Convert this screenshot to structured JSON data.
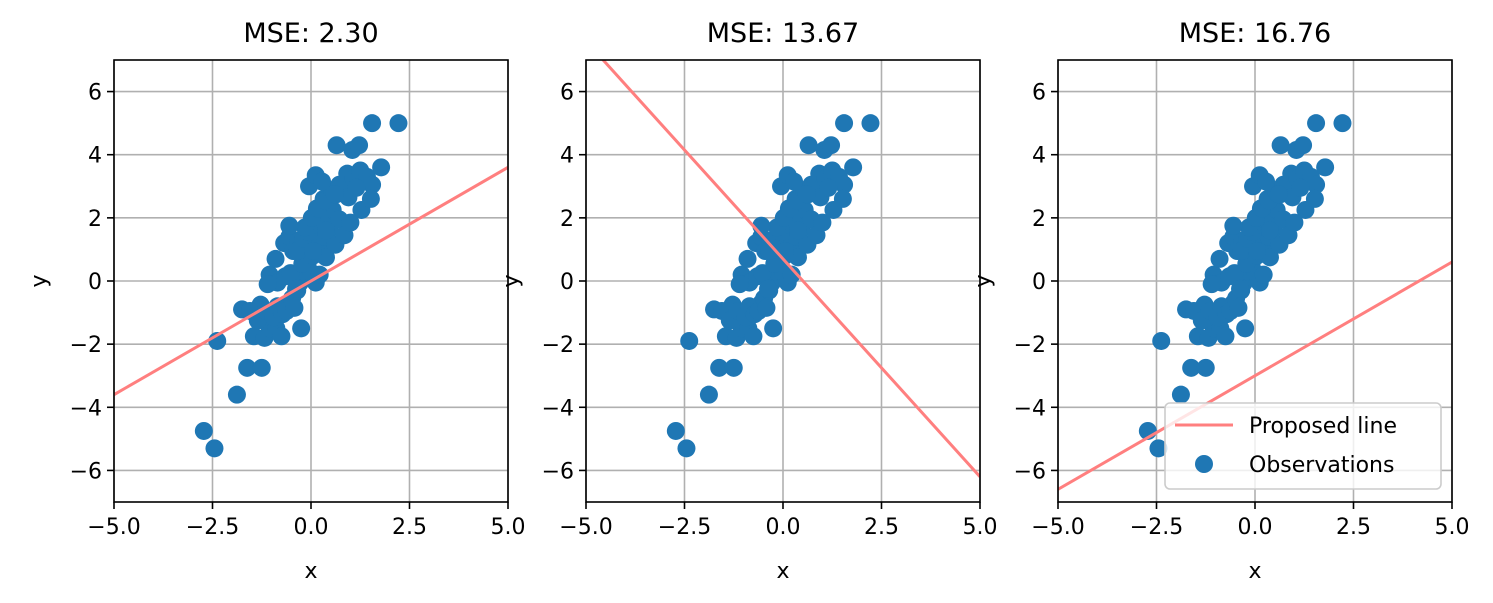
{
  "colors": {
    "observations": "#1f77b4",
    "proposed_line": "#ff7f7f",
    "grid": "#b0b0b0",
    "axes": "#000000"
  },
  "chart_data": [
    {
      "type": "scatter",
      "title": "MSE: 2.30",
      "xlabel": "x",
      "ylabel": "y",
      "xlim": [
        -5.0,
        5.0
      ],
      "ylim": [
        -7.0,
        7.0
      ],
      "xticks": [
        "−5.0",
        "−2.5",
        "0.0",
        "2.5",
        "5.0"
      ],
      "yticks": [
        "−6",
        "−4",
        "−2",
        "0",
        "2",
        "4",
        "6"
      ],
      "grid": true,
      "legend": null,
      "line": {
        "x": [
          -5.0,
          5.0
        ],
        "y": [
          -3.6,
          3.6
        ]
      }
    },
    {
      "type": "scatter",
      "title": "MSE: 13.67",
      "xlabel": "x",
      "ylabel": "y",
      "xlim": [
        -5.0,
        5.0
      ],
      "ylim": [
        -7.0,
        7.0
      ],
      "xticks": [
        "−5.0",
        "−2.5",
        "0.0",
        "2.5",
        "5.0"
      ],
      "yticks": [
        "−6",
        "−4",
        "−2",
        "0",
        "2",
        "4",
        "6"
      ],
      "grid": true,
      "legend": null,
      "line": {
        "x": [
          -5.0,
          5.0
        ],
        "y": [
          7.6,
          -6.2
        ]
      }
    },
    {
      "type": "scatter",
      "title": "MSE: 16.76",
      "xlabel": "x",
      "ylabel": "y",
      "xlim": [
        -5.0,
        5.0
      ],
      "ylim": [
        -7.0,
        7.0
      ],
      "xticks": [
        "−5.0",
        "−2.5",
        "0.0",
        "2.5",
        "5.0"
      ],
      "yticks": [
        "−6",
        "−4",
        "−2",
        "0",
        "2",
        "4",
        "6"
      ],
      "grid": true,
      "legend": {
        "position": "lower right",
        "entries": [
          "Proposed line",
          "Observations"
        ]
      },
      "line": {
        "x": [
          -5.0,
          5.0
        ],
        "y": [
          -6.6,
          0.6
        ]
      }
    }
  ],
  "observations": {
    "x": [
      -2.72,
      -2.45,
      -1.88,
      -1.62,
      -1.25,
      -2.38,
      -1.75,
      -1.45,
      -1.28,
      -1.18,
      -1.05,
      -0.88,
      -0.75,
      -0.55,
      -0.25,
      -1.55,
      -1.35,
      -1.15,
      -0.95,
      -0.85,
      -0.72,
      -0.62,
      -0.48,
      -0.42,
      -0.35,
      -0.28,
      -0.18,
      -0.08,
      0.02,
      0.12,
      0.22,
      -1.05,
      -0.85,
      -0.65,
      -0.52,
      -0.38,
      -0.22,
      -0.05,
      0.05,
      0.15,
      0.28,
      0.38,
      -0.68,
      -0.55,
      -0.45,
      -0.32,
      -0.15,
      -0.02,
      0.08,
      0.22,
      0.35,
      0.48,
      0.62,
      -0.35,
      -0.2,
      -0.05,
      0.1,
      0.25,
      0.4,
      0.55,
      0.72,
      0.85,
      -0.15,
      0.02,
      0.15,
      0.32,
      0.48,
      0.65,
      0.82,
      0.95,
      1.12,
      0.18,
      0.35,
      0.55,
      0.72,
      0.92,
      1.08,
      1.25,
      1.42,
      1.55,
      -0.05,
      0.12,
      0.28,
      0.95,
      1.15,
      1.28,
      1.52,
      1.78,
      0.65,
      1.05,
      1.22,
      1.55,
      2.22,
      0.38,
      0.05,
      -0.9,
      -0.55,
      -1.1,
      0.6,
      1.0
    ],
    "y": [
      -4.75,
      -5.3,
      -3.6,
      -2.75,
      -2.75,
      -1.9,
      -0.9,
      -1.75,
      -0.75,
      -1.8,
      -1.5,
      -1.5,
      -1.75,
      -0.7,
      -1.5,
      -0.95,
      -1.25,
      -0.95,
      -1.15,
      -0.8,
      -1.05,
      -0.95,
      -0.55,
      -0.85,
      -0.3,
      -0.05,
      0.3,
      0.6,
      0.25,
      -0.05,
      0.2,
      0.2,
      -0.05,
      0.15,
      0.25,
      -0.25,
      0.55,
      0.95,
      0.8,
      1.2,
      1.0,
      0.75,
      1.2,
      1.4,
      0.95,
      1.25,
      1.05,
      1.5,
      1.65,
      1.35,
      1.4,
      1.65,
      1.15,
      0.95,
      1.35,
      1.55,
      1.8,
      1.95,
      2.05,
      2.25,
      1.95,
      1.45,
      1.7,
      2.0,
      2.3,
      2.6,
      2.85,
      2.75,
      3.0,
      3.2,
      3.35,
      2.3,
      2.55,
      2.8,
      3.05,
      3.4,
      3.25,
      3.5,
      3.3,
      3.05,
      3.0,
      3.35,
      3.15,
      2.65,
      2.95,
      2.25,
      2.6,
      3.6,
      4.3,
      4.15,
      4.3,
      5.0,
      5.0,
      1.6,
      0.95,
      0.7,
      1.75,
      -0.1,
      2.75,
      1.85
    ]
  }
}
